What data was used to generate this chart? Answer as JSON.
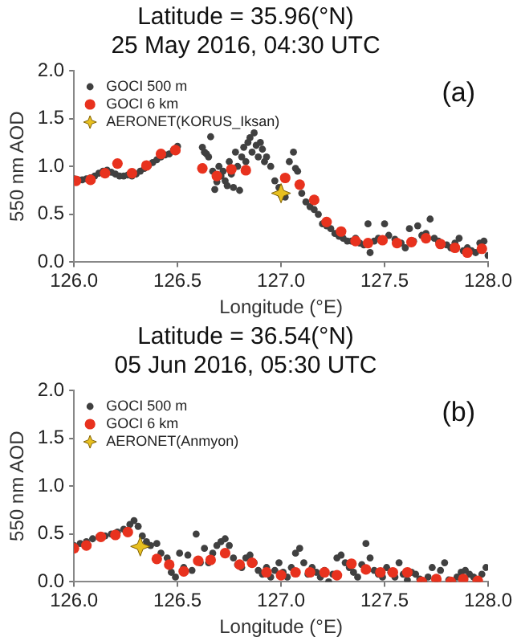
{
  "chart_data": [
    {
      "type": "scatter",
      "title": "Latitude = 35.96(°N)",
      "subtitle": "25 May 2016, 04:30 UTC",
      "xlabel": "Longitude (°E)",
      "ylabel": "550 nm AOD",
      "annotations": [
        "(a)"
      ],
      "legend": "top left",
      "marker": "circle",
      "xlim": [
        126,
        128
      ],
      "xticks": [
        {
          "value": 126,
          "label": "126.0"
        },
        {
          "value": 126.5,
          "label": "126.5"
        },
        {
          "value": 127,
          "label": "127.0"
        },
        {
          "value": 127.5,
          "label": "127.5"
        },
        {
          "value": 128,
          "label": "128.0"
        }
      ],
      "ylim": [
        0,
        2
      ],
      "yticks": [
        {
          "value": 0,
          "label": "0.0"
        },
        {
          "value": 0.5,
          "label": "0.5"
        },
        {
          "value": 1,
          "label": "1.0"
        },
        {
          "value": 1.5,
          "label": "1.5"
        },
        {
          "value": 2,
          "label": "2.0"
        }
      ],
      "series": [
        {
          "name": "GOCI 500 m",
          "color": "#404040",
          "x": [
            126.0,
            126.02,
            126.04,
            126.06,
            126.08,
            126.1,
            126.12,
            126.14,
            126.16,
            126.18,
            126.2,
            126.22,
            126.24,
            126.26,
            126.28,
            126.3,
            126.32,
            126.34,
            126.36,
            126.38,
            126.4,
            126.42,
            126.44,
            126.46,
            126.48,
            126.5,
            126.62,
            126.63,
            126.64,
            126.65,
            126.66,
            126.67,
            126.68,
            126.69,
            126.7,
            126.71,
            126.72,
            126.73,
            126.74,
            126.75,
            126.76,
            126.77,
            126.78,
            126.79,
            126.8,
            126.81,
            126.82,
            126.83,
            126.84,
            126.85,
            126.86,
            126.87,
            126.88,
            126.89,
            126.9,
            126.91,
            126.92,
            126.93,
            126.95,
            126.97,
            126.99,
            127.0,
            127.02,
            127.04,
            127.06,
            127.07,
            127.08,
            127.1,
            127.12,
            127.14,
            127.16,
            127.18,
            127.2,
            127.22,
            127.24,
            127.26,
            127.28,
            127.3,
            127.32,
            127.34,
            127.36,
            127.38,
            127.4,
            127.42,
            127.43,
            127.45,
            127.47,
            127.5,
            127.52,
            127.55,
            127.58,
            127.6,
            127.62,
            127.64,
            127.66,
            127.68,
            127.7,
            127.72,
            127.74,
            127.76,
            127.8,
            127.82,
            127.84,
            127.86,
            127.88,
            127.9,
            127.92,
            127.94,
            127.96,
            127.98,
            128.0
          ],
          "values": [
            0.87,
            0.86,
            0.86,
            0.87,
            0.88,
            0.9,
            0.93,
            0.95,
            0.96,
            0.94,
            0.92,
            0.9,
            0.9,
            0.91,
            0.9,
            0.92,
            0.95,
            0.98,
            1.01,
            1.04,
            1.07,
            1.1,
            1.12,
            1.13,
            1.17,
            1.21,
            1.2,
            1.15,
            1.13,
            1.1,
            1.31,
            0.95,
            0.76,
            0.84,
            1.0,
            0.9,
            0.95,
            0.85,
            0.8,
            1.05,
            0.92,
            0.78,
            1.15,
            1.0,
            0.75,
            1.1,
            1.2,
            1.05,
            1.25,
            1.3,
            1.15,
            1.35,
            1.22,
            1.1,
            1.25,
            1.18,
            1.05,
            1.1,
            1.0,
            0.85,
            0.78,
            0.7,
            0.68,
            1.05,
            1.15,
            0.98,
            0.95,
            0.72,
            0.63,
            0.58,
            0.55,
            0.5,
            0.4,
            0.38,
            0.35,
            0.3,
            0.27,
            0.25,
            0.22,
            0.22,
            0.25,
            0.2,
            0.18,
            0.4,
            0.1,
            0.22,
            0.25,
            0.4,
            0.28,
            0.24,
            0.2,
            0.15,
            0.35,
            0.22,
            0.38,
            0.28,
            0.3,
            0.45,
            0.25,
            0.22,
            0.18,
            0.15,
            0.2,
            0.25,
            0.12,
            0.15,
            0.12,
            0.1,
            0.2,
            0.22,
            0.07
          ]
        },
        {
          "name": "GOCI 6 km",
          "color": "#e8321e",
          "x": [
            126.01,
            126.08,
            126.15,
            126.21,
            126.28,
            126.35,
            126.42,
            126.49,
            126.62,
            126.69,
            126.76,
            126.83,
            127.02,
            127.09,
            127.16,
            127.22,
            127.29,
            127.36,
            127.42,
            127.49,
            127.56,
            127.63,
            127.7,
            127.77,
            127.84,
            127.9,
            127.97
          ],
          "values": [
            0.85,
            0.86,
            0.93,
            1.03,
            0.93,
            1.01,
            1.13,
            1.17,
            0.98,
            0.9,
            0.97,
            0.96,
            0.88,
            0.81,
            0.65,
            0.42,
            0.32,
            0.22,
            0.2,
            0.23,
            0.2,
            0.21,
            0.25,
            0.19,
            0.15,
            0.1,
            0.14
          ]
        },
        {
          "name": "AERONET(KORUS_Iksan)",
          "color": "#e8c020",
          "marker": "star",
          "x": [
            127.0
          ],
          "values": [
            0.72
          ]
        }
      ]
    },
    {
      "type": "scatter",
      "title": "Latitude = 36.54(°N)",
      "subtitle": "05 Jun 2016, 05:30 UTC",
      "xlabel": "Longitude (°E)",
      "ylabel": "550 nm AOD",
      "annotations": [
        "(b)"
      ],
      "legend": "top left",
      "marker": "circle",
      "xlim": [
        126,
        128
      ],
      "xticks": [
        {
          "value": 126,
          "label": "126.0"
        },
        {
          "value": 126.5,
          "label": "126.5"
        },
        {
          "value": 127,
          "label": "127.0"
        },
        {
          "value": 127.5,
          "label": "127.5"
        },
        {
          "value": 128,
          "label": "128.0"
        }
      ],
      "ylim": [
        0,
        2
      ],
      "yticks": [
        {
          "value": 0,
          "label": "0.0"
        },
        {
          "value": 0.5,
          "label": "0.5"
        },
        {
          "value": 1,
          "label": "1.0"
        },
        {
          "value": 1.5,
          "label": "1.5"
        },
        {
          "value": 2,
          "label": "2.0"
        }
      ],
      "series": [
        {
          "name": "GOCI 500 m",
          "color": "#404040",
          "x": [
            126.0,
            126.03,
            126.06,
            126.09,
            126.12,
            126.15,
            126.18,
            126.21,
            126.24,
            126.27,
            126.29,
            126.31,
            126.33,
            126.35,
            126.37,
            126.4,
            126.42,
            126.45,
            126.47,
            126.49,
            126.51,
            126.53,
            126.55,
            126.57,
            126.59,
            126.61,
            126.63,
            126.65,
            126.67,
            126.69,
            126.71,
            126.73,
            126.75,
            126.77,
            126.79,
            126.81,
            126.83,
            126.85,
            126.87,
            126.89,
            126.91,
            126.93,
            126.95,
            126.97,
            126.99,
            127.01,
            127.03,
            127.05,
            127.07,
            127.09,
            127.11,
            127.13,
            127.15,
            127.17,
            127.19,
            127.21,
            127.23,
            127.25,
            127.27,
            127.29,
            127.31,
            127.33,
            127.35,
            127.37,
            127.39,
            127.41,
            127.43,
            127.45,
            127.47,
            127.49,
            127.51,
            127.53,
            127.55,
            127.57,
            127.59,
            127.61,
            127.63,
            127.65,
            127.67,
            127.69,
            127.71,
            127.73,
            127.75,
            127.77,
            127.79,
            127.81,
            127.83,
            127.85,
            127.87,
            127.89,
            127.91,
            127.93,
            127.95,
            127.97,
            127.99
          ],
          "values": [
            0.38,
            0.4,
            0.42,
            0.45,
            0.47,
            0.48,
            0.5,
            0.52,
            0.55,
            0.6,
            0.64,
            0.58,
            0.48,
            0.42,
            0.38,
            0.4,
            0.3,
            0.25,
            0.1,
            0.05,
            0.3,
            0.15,
            0.28,
            0.12,
            0.5,
            0.2,
            0.35,
            0.2,
            0.3,
            0.38,
            0.42,
            0.45,
            0.38,
            0.25,
            0.18,
            0.15,
            0.25,
            0.28,
            0.2,
            0.12,
            0.08,
            0.15,
            0.05,
            0.12,
            0.2,
            0.1,
            0.05,
            0.15,
            0.3,
            0.35,
            0.2,
            0.08,
            0.15,
            0.1,
            0.05,
            0.12,
            0.0,
            0.08,
            0.25,
            0.28,
            0.2,
            0.15,
            0.1,
            0.05,
            0.18,
            0.4,
            0.25,
            0.12,
            0.08,
            0.05,
            0.15,
            0.1,
            0.05,
            0.2,
            0.08,
            0.02,
            0.1,
            0.08,
            0.03,
            0.0,
            0.05,
            0.15,
            0.03,
            0.12,
            0.2,
            0.02,
            0.0,
            0.05,
            0.1,
            0.12,
            0.08,
            0.05,
            0.02,
            0.08,
            0.15
          ]
        },
        {
          "name": "GOCI 6 km",
          "color": "#e8321e",
          "x": [
            126.0,
            126.06,
            126.13,
            126.2,
            126.26,
            126.4,
            126.46,
            126.53,
            126.6,
            126.66,
            126.73,
            126.8,
            126.86,
            126.93,
            127.0,
            127.07,
            127.14,
            127.21,
            127.27,
            127.34,
            127.41,
            127.48,
            127.54,
            127.61,
            127.68,
            127.75,
            127.82,
            127.88,
            127.95
          ],
          "values": [
            0.35,
            0.38,
            0.47,
            0.49,
            0.52,
            0.24,
            0.18,
            0.11,
            0.22,
            0.23,
            0.3,
            0.18,
            0.2,
            0.1,
            0.07,
            0.1,
            0.1,
            0.1,
            0.07,
            0.19,
            0.13,
            0.1,
            0.1,
            0.1,
            0.0,
            0.03,
            0.0,
            0.03,
            0.01
          ]
        },
        {
          "name": "AERONET(Anmyon)",
          "color": "#e8c020",
          "marker": "star",
          "x": [
            126.32
          ],
          "values": [
            0.37
          ]
        }
      ]
    }
  ]
}
